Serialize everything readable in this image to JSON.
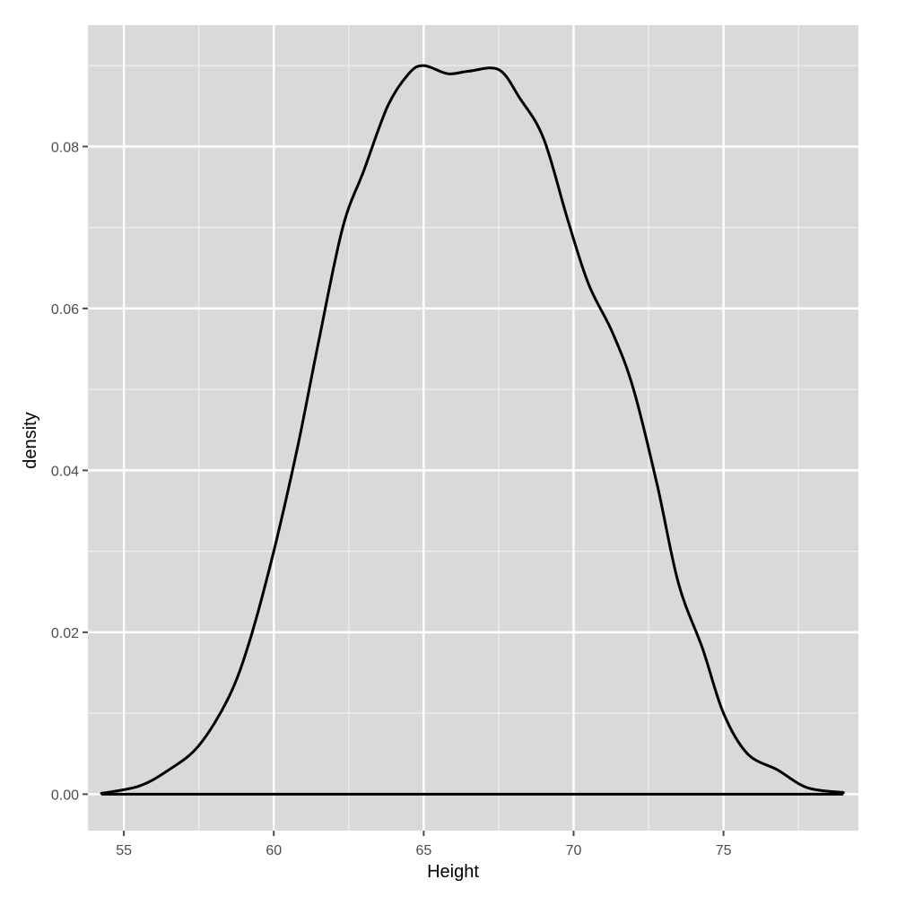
{
  "chart_data": {
    "type": "line",
    "subtype": "density",
    "title": "",
    "xlabel": "Height",
    "ylabel": "density",
    "xlim": [
      53.8,
      79.5
    ],
    "ylim": [
      -0.0045,
      0.095
    ],
    "x_ticks": [
      55,
      60,
      65,
      70,
      75
    ],
    "x_tick_labels": [
      "55",
      "60",
      "65",
      "70",
      "75"
    ],
    "y_ticks": [
      0.0,
      0.02,
      0.04,
      0.06,
      0.08
    ],
    "y_tick_labels": [
      "0.00",
      "0.02",
      "0.04",
      "0.06",
      "0.08"
    ],
    "grid": true,
    "legend": null,
    "panel_background": "#d9d9d9",
    "grid_color": "#ffffff",
    "line_color": "#000000",
    "series": [
      {
        "name": "density",
        "x": [
          54.25,
          55.5,
          56.5,
          57.5,
          58.5,
          59.2,
          60.0,
          60.8,
          61.5,
          62.3,
          63.0,
          63.8,
          64.5,
          65.0,
          65.8,
          66.5,
          67.5,
          68.2,
          69.0,
          69.8,
          70.5,
          71.3,
          72.0,
          72.8,
          73.5,
          74.3,
          75.0,
          75.8,
          76.8,
          77.8,
          79.0
        ],
        "y": [
          0.0001,
          0.001,
          0.003,
          0.006,
          0.012,
          0.019,
          0.03,
          0.043,
          0.056,
          0.07,
          0.077,
          0.085,
          0.089,
          0.09,
          0.089,
          0.0893,
          0.0895,
          0.086,
          0.081,
          0.071,
          0.063,
          0.057,
          0.05,
          0.038,
          0.026,
          0.018,
          0.01,
          0.005,
          0.003,
          0.0008,
          0.0002
        ]
      }
    ]
  }
}
